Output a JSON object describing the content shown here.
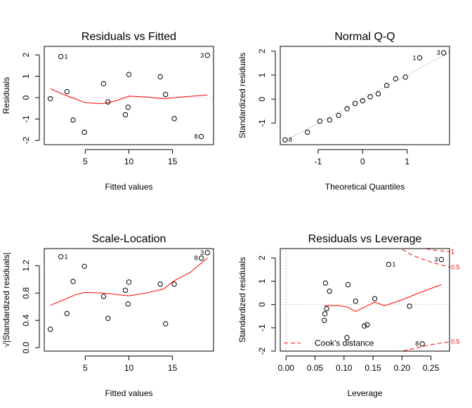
{
  "chart_data": [
    {
      "type": "scatter",
      "title": "Residuals vs Fitted",
      "xlabel": "Fitted values",
      "ylabel": "Residuals",
      "xlim": [
        0.3,
        19.7
      ],
      "ylim": [
        -2.2,
        2.4
      ],
      "xticks": [
        5,
        10,
        15
      ],
      "yticks": [
        -2,
        -1,
        0,
        1,
        2
      ],
      "refline": 0,
      "points": [
        {
          "x": 1.0,
          "y": -0.05
        },
        {
          "x": 2.2,
          "y": 1.92
        },
        {
          "x": 2.9,
          "y": 0.28
        },
        {
          "x": 3.6,
          "y": -1.05
        },
        {
          "x": 4.9,
          "y": -1.62
        },
        {
          "x": 7.1,
          "y": 0.65
        },
        {
          "x": 7.6,
          "y": -0.2
        },
        {
          "x": 9.6,
          "y": -0.8
        },
        {
          "x": 9.9,
          "y": -0.45
        },
        {
          "x": 10.0,
          "y": 1.08
        },
        {
          "x": 13.6,
          "y": 0.98
        },
        {
          "x": 14.2,
          "y": 0.15
        },
        {
          "x": 15.2,
          "y": -0.98
        },
        {
          "x": 18.3,
          "y": -1.82
        },
        {
          "x": 19.0,
          "y": 1.98
        }
      ],
      "point_labels": [
        {
          "text": "1",
          "x": 2.2,
          "y": 1.92,
          "side": "right"
        },
        {
          "text": "3",
          "x": 19.0,
          "y": 1.98,
          "side": "left"
        },
        {
          "text": "8",
          "x": 18.3,
          "y": -1.82,
          "side": "left"
        }
      ],
      "smooth": [
        {
          "x": 1.0,
          "y": 0.42
        },
        {
          "x": 2.5,
          "y": 0.15
        },
        {
          "x": 4.0,
          "y": -0.08
        },
        {
          "x": 5.0,
          "y": -0.24
        },
        {
          "x": 7.0,
          "y": -0.28
        },
        {
          "x": 8.5,
          "y": -0.15
        },
        {
          "x": 10.0,
          "y": 0.07
        },
        {
          "x": 12.0,
          "y": 0.03
        },
        {
          "x": 14.0,
          "y": -0.05
        },
        {
          "x": 16.0,
          "y": 0.03
        },
        {
          "x": 19.0,
          "y": 0.12
        }
      ]
    },
    {
      "type": "scatter",
      "title": "Normal Q-Q",
      "xlabel": "Theoretical Quantiles",
      "ylabel": "Standardized residuals",
      "xlim": [
        -1.85,
        1.95
      ],
      "ylim": [
        -1.9,
        2.2
      ],
      "xticks": [
        -1,
        0,
        1
      ],
      "yticks": [
        -1,
        0,
        1,
        2
      ],
      "qqline": {
        "slope": 1.0,
        "intercept": 0.0
      },
      "points": [
        {
          "x": -1.74,
          "y": -1.7
        },
        {
          "x": -1.24,
          "y": -1.38
        },
        {
          "x": -0.96,
          "y": -0.92
        },
        {
          "x": -0.74,
          "y": -0.87
        },
        {
          "x": -0.54,
          "y": -0.68
        },
        {
          "x": -0.35,
          "y": -0.4
        },
        {
          "x": -0.17,
          "y": -0.18
        },
        {
          "x": 0.0,
          "y": -0.07
        },
        {
          "x": 0.17,
          "y": 0.1
        },
        {
          "x": 0.35,
          "y": 0.22
        },
        {
          "x": 0.54,
          "y": 0.57
        },
        {
          "x": 0.74,
          "y": 0.85
        },
        {
          "x": 0.96,
          "y": 0.92
        },
        {
          "x": 1.28,
          "y": 1.72
        },
        {
          "x": 1.82,
          "y": 1.93
        }
      ],
      "point_labels": [
        {
          "text": "8",
          "x": -1.74,
          "y": -1.7,
          "side": "right"
        },
        {
          "text": "1",
          "x": 1.28,
          "y": 1.72,
          "side": "left"
        },
        {
          "text": "3",
          "x": 1.82,
          "y": 1.93,
          "side": "left"
        }
      ]
    },
    {
      "type": "scatter",
      "title": "Scale-Location",
      "xlabel": "Fitted values",
      "ylabel": "√|Standardized residuals|",
      "xlim": [
        0.3,
        19.7
      ],
      "ylim": [
        -0.05,
        1.45
      ],
      "xticks": [
        5,
        10,
        15
      ],
      "yticks": [
        0.0,
        0.4,
        0.8,
        1.2
      ],
      "ytick_labels": [
        "0.0",
        "0.4",
        "0.8",
        "1.2"
      ],
      "points": [
        {
          "x": 1.0,
          "y": 0.27
        },
        {
          "x": 2.2,
          "y": 1.33
        },
        {
          "x": 2.9,
          "y": 0.5
        },
        {
          "x": 3.6,
          "y": 0.97
        },
        {
          "x": 4.9,
          "y": 1.19
        },
        {
          "x": 7.1,
          "y": 0.75
        },
        {
          "x": 7.6,
          "y": 0.43
        },
        {
          "x": 9.6,
          "y": 0.84
        },
        {
          "x": 9.9,
          "y": 0.64
        },
        {
          "x": 10.0,
          "y": 0.96
        },
        {
          "x": 13.6,
          "y": 0.93
        },
        {
          "x": 14.2,
          "y": 0.35
        },
        {
          "x": 15.2,
          "y": 0.93
        },
        {
          "x": 18.3,
          "y": 1.31
        },
        {
          "x": 19.0,
          "y": 1.39
        }
      ],
      "point_labels": [
        {
          "text": "1",
          "x": 2.2,
          "y": 1.33,
          "side": "right"
        },
        {
          "text": "8",
          "x": 18.3,
          "y": 1.31,
          "side": "left"
        },
        {
          "text": "3",
          "x": 19.0,
          "y": 1.39,
          "side": "left"
        }
      ],
      "smooth": [
        {
          "x": 1.0,
          "y": 0.62
        },
        {
          "x": 2.5,
          "y": 0.7
        },
        {
          "x": 4.0,
          "y": 0.78
        },
        {
          "x": 5.0,
          "y": 0.81
        },
        {
          "x": 7.0,
          "y": 0.8
        },
        {
          "x": 8.5,
          "y": 0.78
        },
        {
          "x": 10.0,
          "y": 0.76
        },
        {
          "x": 12.0,
          "y": 0.8
        },
        {
          "x": 14.0,
          "y": 0.86
        },
        {
          "x": 15.2,
          "y": 0.98
        },
        {
          "x": 17.0,
          "y": 1.1
        },
        {
          "x": 19.0,
          "y": 1.31
        }
      ]
    },
    {
      "type": "scatter",
      "title": "Residuals vs Leverage",
      "xlabel": "Leverage",
      "ylabel": "Standardized residuals",
      "xlim": [
        -0.01,
        0.282
      ],
      "ylim": [
        -2.0,
        2.4
      ],
      "xticks": [
        0.0,
        0.05,
        0.1,
        0.15,
        0.2,
        0.25
      ],
      "xtick_labels": [
        "0.00",
        "0.05",
        "0.10",
        "0.15",
        "0.20",
        "0.25"
      ],
      "yticks": [
        -2,
        -1,
        0,
        1,
        2
      ],
      "refline": 0,
      "points": [
        {
          "x": 0.066,
          "y": -0.68
        },
        {
          "x": 0.067,
          "y": -0.4
        },
        {
          "x": 0.068,
          "y": 0.92
        },
        {
          "x": 0.07,
          "y": -0.18
        },
        {
          "x": 0.075,
          "y": 0.57
        },
        {
          "x": 0.105,
          "y": -1.42
        },
        {
          "x": 0.107,
          "y": 0.85
        },
        {
          "x": 0.12,
          "y": 0.14
        },
        {
          "x": 0.135,
          "y": -0.92
        },
        {
          "x": 0.14,
          "y": -0.87
        },
        {
          "x": 0.153,
          "y": 0.25
        },
        {
          "x": 0.177,
          "y": 1.72
        },
        {
          "x": 0.213,
          "y": -0.07
        },
        {
          "x": 0.235,
          "y": -1.69
        },
        {
          "x": 0.268,
          "y": 1.93
        }
      ],
      "point_labels": [
        {
          "text": "1",
          "x": 0.177,
          "y": 1.72,
          "side": "right"
        },
        {
          "text": "3",
          "x": 0.268,
          "y": 1.93,
          "side": "left"
        },
        {
          "text": "8",
          "x": 0.235,
          "y": -1.69,
          "side": "left"
        }
      ],
      "smooth": [
        {
          "x": 0.066,
          "y": -0.05
        },
        {
          "x": 0.09,
          "y": -0.05
        },
        {
          "x": 0.105,
          "y": -0.1
        },
        {
          "x": 0.12,
          "y": -0.3
        },
        {
          "x": 0.135,
          "y": -0.12
        },
        {
          "x": 0.153,
          "y": 0.1
        },
        {
          "x": 0.17,
          "y": -0.05
        },
        {
          "x": 0.2,
          "y": 0.2
        },
        {
          "x": 0.23,
          "y": 0.5
        },
        {
          "x": 0.268,
          "y": 0.85
        }
      ],
      "cooks_contours": [
        {
          "level": 0.5,
          "label": "0.5",
          "upper": [
            {
              "x": 0.19,
              "y": 2.51
            },
            {
              "x": 0.22,
              "y": 2.09
            },
            {
              "x": 0.25,
              "y": 1.82
            },
            {
              "x": 0.282,
              "y": 1.6
            }
          ],
          "lower": [
            {
              "x": 0.19,
              "y": -2.06
            },
            {
              "x": 0.22,
              "y": -1.89
            },
            {
              "x": 0.25,
              "y": -1.72
            },
            {
              "x": 0.282,
              "y": -1.6
            }
          ]
        },
        {
          "level": 1,
          "label": "1",
          "upper": [
            {
              "x": 0.23,
              "y": 2.47
            },
            {
              "x": 0.25,
              "y": 2.35
            },
            {
              "x": 0.282,
              "y": 2.26
            }
          ],
          "lower": []
        }
      ],
      "legend": {
        "label": "Cook's distance",
        "position": "bottom-left"
      }
    }
  ]
}
